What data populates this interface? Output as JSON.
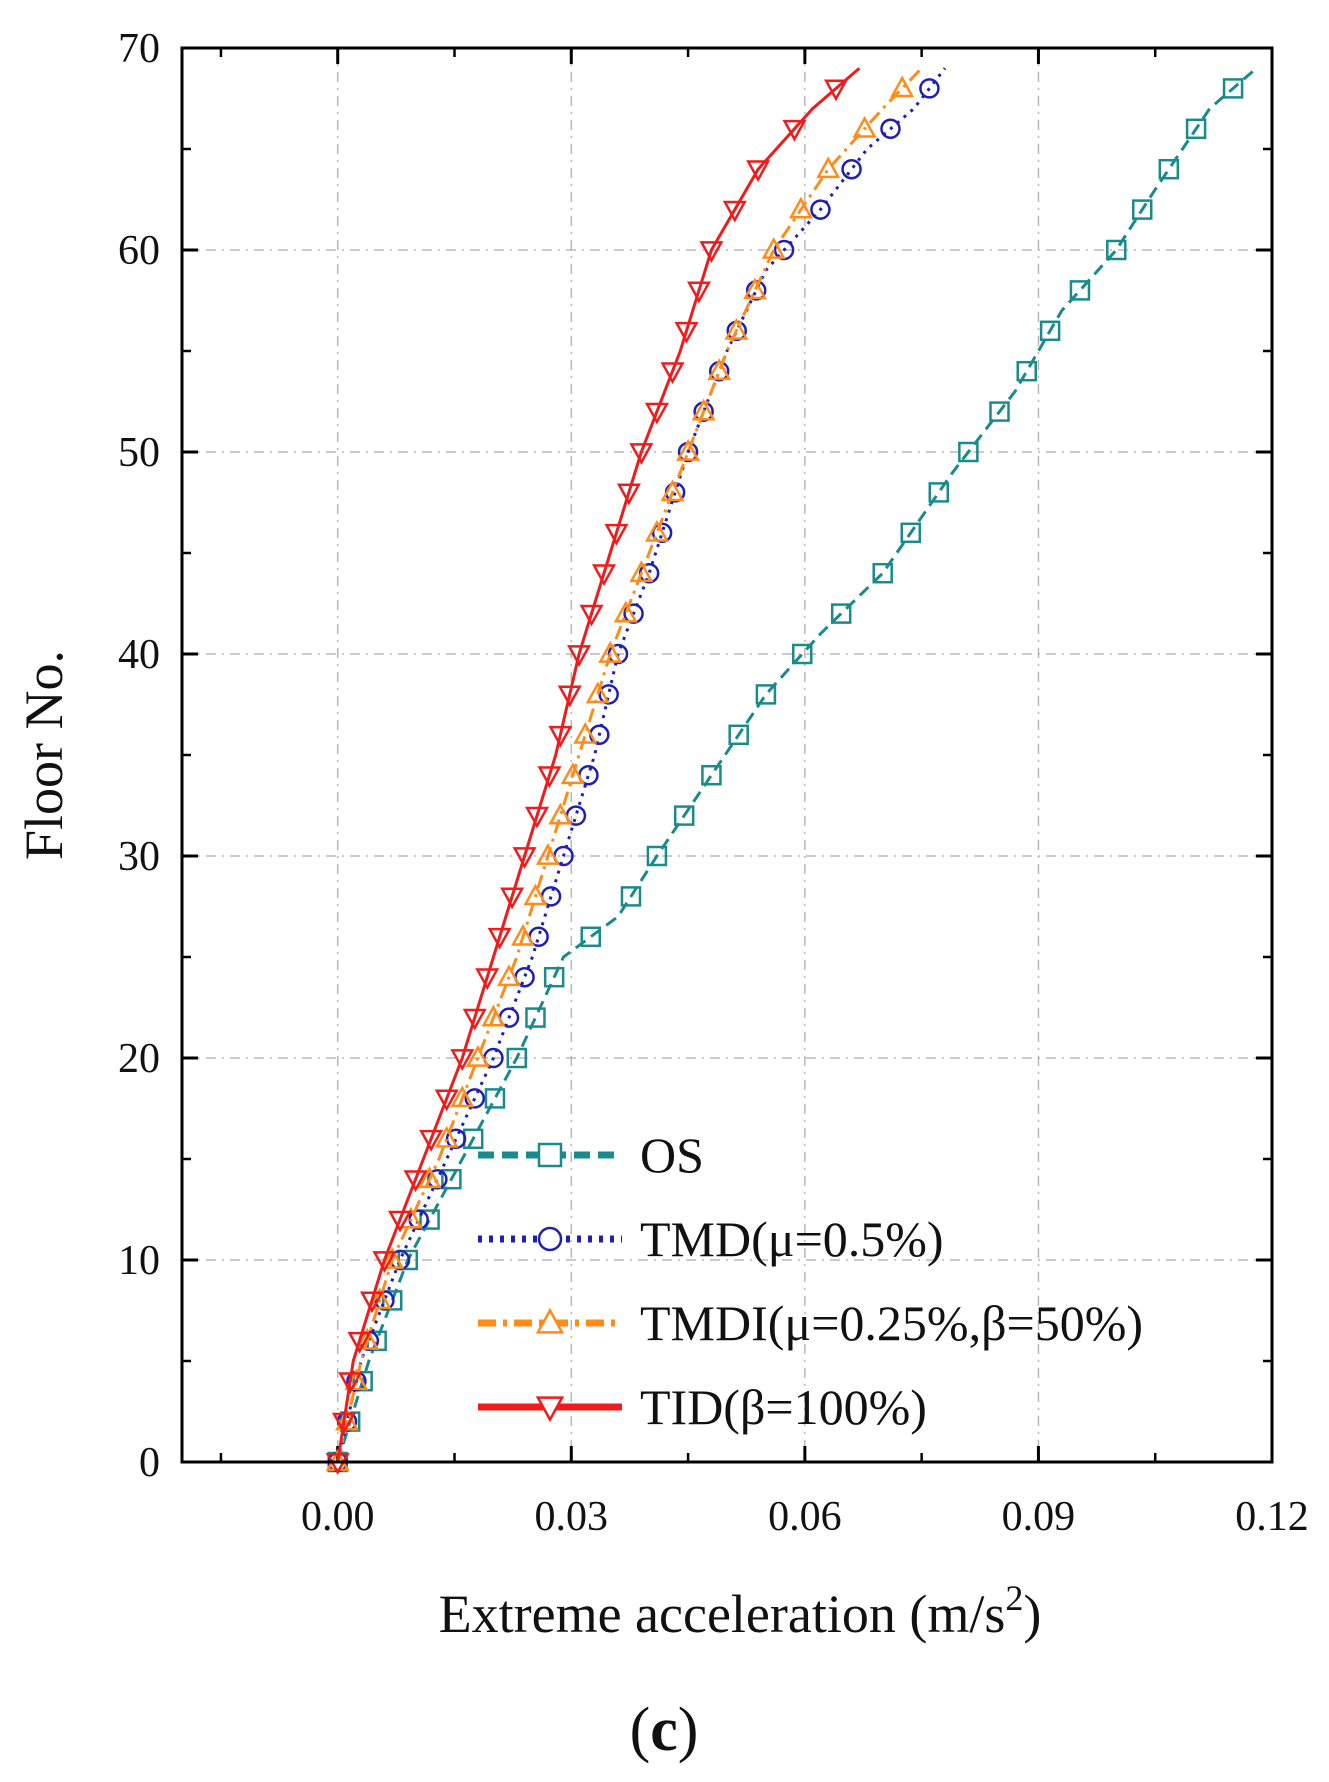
{
  "chart_data": {
    "type": "line",
    "title": "",
    "xlabel_main": "Extreme acceleration (m/s",
    "xlabel_sup": "2",
    "xlabel_close": ")",
    "ylabel": "Floor No.",
    "xlim": [
      -0.02,
      0.12
    ],
    "ylim": [
      0,
      70
    ],
    "xticks": [
      0.0,
      0.03,
      0.06,
      0.09,
      0.12
    ],
    "xtick_labels": [
      "0.00",
      "0.03",
      "0.06",
      "0.09",
      "0.12"
    ],
    "yticks": [
      0,
      10,
      20,
      30,
      40,
      50,
      60,
      70
    ],
    "ytick_labels": [
      "0",
      "10",
      "20",
      "30",
      "40",
      "50",
      "60",
      "70"
    ],
    "grid": true,
    "legend_position": "lower-center",
    "panel_label_open": "(",
    "panel_label_letter": "c",
    "panel_label_close": ")",
    "series": [
      {
        "name": "OS",
        "color": "#1a8a8a",
        "marker": "square",
        "linestyle": "dashed",
        "points": [
          [
            0.0,
            0
          ],
          [
            0.004,
            5
          ],
          [
            0.009,
            10
          ],
          [
            0.016,
            15
          ],
          [
            0.023,
            20
          ],
          [
            0.029,
            25
          ],
          [
            0.036,
            27
          ],
          [
            0.041,
            30
          ],
          [
            0.048,
            34
          ],
          [
            0.055,
            38
          ],
          [
            0.062,
            41
          ],
          [
            0.07,
            44
          ],
          [
            0.079,
            49
          ],
          [
            0.087,
            53
          ],
          [
            0.093,
            57
          ],
          [
            0.1,
            60
          ],
          [
            0.105,
            63
          ],
          [
            0.112,
            67
          ],
          [
            0.118,
            69
          ]
        ]
      },
      {
        "name": "TMD(μ=0.5%)",
        "color": "#1f1fb4",
        "marker": "circle",
        "linestyle": "dotted",
        "points": [
          [
            0.0,
            0
          ],
          [
            0.003,
            5
          ],
          [
            0.008,
            10
          ],
          [
            0.014,
            15
          ],
          [
            0.02,
            20
          ],
          [
            0.025,
            25
          ],
          [
            0.029,
            30
          ],
          [
            0.033,
            35
          ],
          [
            0.036,
            40
          ],
          [
            0.04,
            44
          ],
          [
            0.045,
            50
          ],
          [
            0.05,
            55
          ],
          [
            0.055,
            59
          ],
          [
            0.062,
            62
          ],
          [
            0.068,
            65
          ],
          [
            0.074,
            67
          ],
          [
            0.078,
            69
          ]
        ]
      },
      {
        "name": "TMDI(μ=0.25%,β=50%)",
        "color": "#ff8c1a",
        "marker": "triangle-up",
        "linestyle": "dashdot",
        "points": [
          [
            0.0,
            0
          ],
          [
            0.003,
            5
          ],
          [
            0.007,
            10
          ],
          [
            0.013,
            15
          ],
          [
            0.018,
            20
          ],
          [
            0.023,
            25
          ],
          [
            0.027,
            30
          ],
          [
            0.031,
            35
          ],
          [
            0.035,
            40
          ],
          [
            0.04,
            45
          ],
          [
            0.045,
            50
          ],
          [
            0.05,
            55
          ],
          [
            0.056,
            60
          ],
          [
            0.063,
            64
          ],
          [
            0.07,
            67
          ],
          [
            0.075,
            69
          ]
        ]
      },
      {
        "name": "TID(β=100%)",
        "color": "#ee1c1c",
        "marker": "triangle-down",
        "linestyle": "solid",
        "points": [
          [
            0.0,
            0
          ],
          [
            0.002,
            5
          ],
          [
            0.006,
            10
          ],
          [
            0.011,
            15
          ],
          [
            0.016,
            20
          ],
          [
            0.02,
            25
          ],
          [
            0.024,
            30
          ],
          [
            0.028,
            35
          ],
          [
            0.031,
            40
          ],
          [
            0.035,
            45
          ],
          [
            0.039,
            50
          ],
          [
            0.044,
            55
          ],
          [
            0.048,
            60
          ],
          [
            0.054,
            64
          ],
          [
            0.061,
            67
          ],
          [
            0.067,
            69
          ]
        ]
      }
    ]
  }
}
